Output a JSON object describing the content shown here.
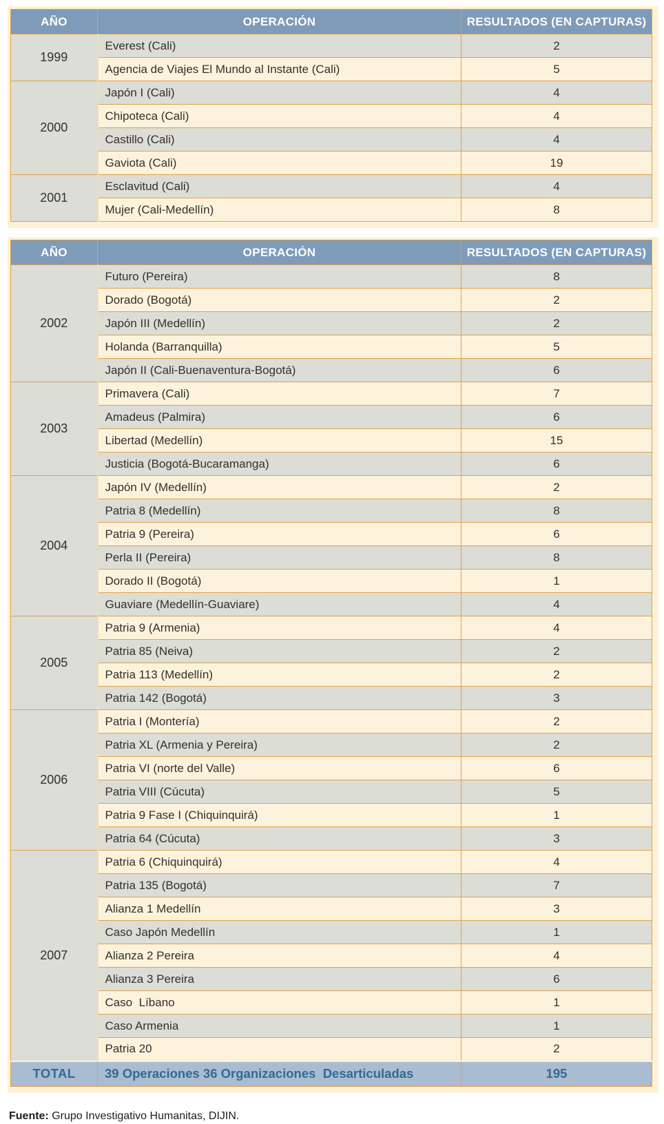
{
  "columns": [
    "AÑO",
    "OPERACIÓN",
    "RESULTADOS (EN CAPTURAS)"
  ],
  "colors": {
    "header_bg": "#7e9bba",
    "header_text": "#ffffff",
    "row_gray": "#dcddd6",
    "row_cream": "#fdf3dc",
    "border_orange": "#dfa149",
    "frame_cream": "#fcf2d8",
    "total_bg": "#a9bcd2",
    "total_text": "#346a90"
  },
  "tables": [
    {
      "groups": [
        {
          "year": "1999",
          "rows": [
            {
              "operation": "Everest (Cali)",
              "result": "2"
            },
            {
              "operation": "Agencia de Viajes El Mundo al Instante (Cali)",
              "result": "5"
            }
          ]
        },
        {
          "year": "2000",
          "rows": [
            {
              "operation": "Japón I (Cali)",
              "result": "4"
            },
            {
              "operation": "Chipoteca (Cali)",
              "result": "4"
            },
            {
              "operation": "Castillo (Cali)",
              "result": "4"
            },
            {
              "operation": "Gaviota (Cali)",
              "result": "19"
            }
          ]
        },
        {
          "year": "2001",
          "rows": [
            {
              "operation": "Esclavitud (Cali)",
              "result": "4"
            },
            {
              "operation": "Mujer (Cali-Medellín)",
              "result": "8"
            }
          ]
        }
      ]
    },
    {
      "groups": [
        {
          "year": "2002",
          "rows": [
            {
              "operation": "Futuro (Pereira)",
              "result": "8"
            },
            {
              "operation": "Dorado (Bogotá)",
              "result": "2"
            },
            {
              "operation": "Japón III (Medellín)",
              "result": "2"
            },
            {
              "operation": "Holanda (Barranquilla)",
              "result": "5"
            },
            {
              "operation": "Japón II (Cali-Buenaventura-Bogotá)",
              "result": "6"
            }
          ]
        },
        {
          "year": "2003",
          "rows": [
            {
              "operation": "Primavera (Cali)",
              "result": "7"
            },
            {
              "operation": "Amadeus (Palmira)",
              "result": "6"
            },
            {
              "operation": "Libertad (Medellín)",
              "result": "15"
            },
            {
              "operation": "Justicia (Bogotá-Bucaramanga)",
              "result": "6"
            }
          ]
        },
        {
          "year": "2004",
          "rows": [
            {
              "operation": "Japón IV (Medellín)",
              "result": "2"
            },
            {
              "operation": "Patria 8 (Medellín)",
              "result": "8"
            },
            {
              "operation": "Patria 9 (Pereira)",
              "result": "6"
            },
            {
              "operation": "Perla II (Pereira)",
              "result": "8"
            },
            {
              "operation": "Dorado II (Bogotá)",
              "result": "1"
            },
            {
              "operation": "Guaviare (Medellín-Guaviare)",
              "result": "4"
            }
          ]
        },
        {
          "year": "2005",
          "rows": [
            {
              "operation": "Patria 9 (Armenia)",
              "result": "4"
            },
            {
              "operation": "Patria 85 (Neiva)",
              "result": "2"
            },
            {
              "operation": "Patria 113 (Medellín)",
              "result": "2"
            },
            {
              "operation": "Patria 142 (Bogotá)",
              "result": "3"
            }
          ]
        },
        {
          "year": "2006",
          "rows": [
            {
              "operation": "Patria I (Montería)",
              "result": "2"
            },
            {
              "operation": "Patria XL (Armenia y Pereira)",
              "result": "2"
            },
            {
              "operation": "Patria VI (norte del Valle)",
              "result": "6"
            },
            {
              "operation": "Patria VIII (Cúcuta)",
              "result": "5"
            },
            {
              "operation": "Patria 9 Fase I (Chiquinquirá)",
              "result": "1"
            },
            {
              "operation": "Patria 64 (Cúcuta)",
              "result": "3"
            }
          ]
        },
        {
          "year": "2007",
          "rows": [
            {
              "operation": "Patria 6 (Chiquinquirá)",
              "result": "4"
            },
            {
              "operation": "Patria 135 (Bogotá)",
              "result": "7"
            },
            {
              "operation": "Alianza 1 Medellín",
              "result": "3"
            },
            {
              "operation": "Caso Japón Medellín",
              "result": "1"
            },
            {
              "operation": "Alianza 2 Pereira",
              "result": "4"
            },
            {
              "operation": "Alianza 3 Pereira",
              "result": "6"
            },
            {
              "operation": "Caso  Líbano",
              "result": "1"
            },
            {
              "operation": "Caso Armenia",
              "result": "1"
            },
            {
              "operation": "Patria 20",
              "result": "2"
            }
          ]
        }
      ],
      "total": {
        "label": "TOTAL",
        "operation": "39 Operaciones 36 Organizaciones  Desarticuladas",
        "result": "195"
      }
    }
  ],
  "source": {
    "label": "Fuente:",
    "text": " Grupo Investigativo Humanitas, DIJIN."
  }
}
